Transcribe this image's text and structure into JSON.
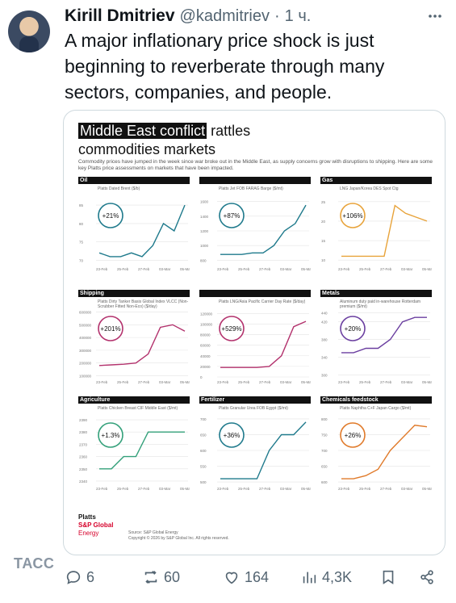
{
  "tweet": {
    "author_name": "Kirill Dmitriev",
    "handle": "@kadmitriev",
    "separator": "·",
    "time": "1 ч.",
    "text": "A major inflationary price shock is just beginning to reverberate through many sectors, companies, and people."
  },
  "infographic": {
    "title_highlight": "Middle East conflict",
    "title_rest_1": "rattles",
    "title_line2": "commodities markets",
    "subtitle": "Commodity prices have jumped in the week since war broke out in the Middle East, as supply concerns grow with disruptions to shipping. Here are some key Platts price assessments on markets that have been impacted.",
    "logo_platts": "Platts",
    "logo_spglobal": "S&P Global",
    "logo_energy": "Energy",
    "source_line1": "Source: S&P Global Energy",
    "source_line2": "Copyright © 2026 by S&P Global Inc. All rights reserved.",
    "x_labels": [
      "23-Feb",
      "25-Feb",
      "27-Feb",
      "03-Mar",
      "05-Mar"
    ]
  },
  "chart_data": [
    {
      "type": "line",
      "title": "Oil",
      "subtitle": "Platts Dated Brent ($/b)",
      "change": "+21%",
      "color": "#1f7a8c",
      "yticks": [
        70,
        75,
        80,
        85
      ],
      "ylim": [
        69,
        87
      ],
      "x": [
        0,
        1,
        2,
        3,
        4,
        5,
        6,
        7,
        8
      ],
      "values": [
        72,
        71,
        71,
        72,
        71,
        74,
        80,
        78,
        85
      ]
    },
    {
      "type": "line",
      "title": "",
      "subtitle": "Platts Jet FOB FARAG Barge ($/mt)",
      "change": "+87%",
      "color": "#1f7a8c",
      "yticks": [
        800,
        1000,
        1200,
        1400,
        1600
      ],
      "ylim": [
        750,
        1650
      ],
      "x": [
        0,
        1,
        2,
        3,
        4,
        5,
        6,
        7,
        8
      ],
      "values": [
        880,
        880,
        880,
        900,
        900,
        1000,
        1200,
        1300,
        1550
      ]
    },
    {
      "type": "line",
      "title": "Gas",
      "subtitle": "LNG Japan/Korea DES Spot Ctg",
      "change": "+106%",
      "color": "#e8a33a",
      "yticks": [
        10,
        15,
        20,
        25
      ],
      "ylim": [
        9,
        26
      ],
      "x": [
        0,
        1,
        2,
        3,
        4,
        5,
        6,
        7,
        8
      ],
      "values": [
        11,
        11,
        11,
        11,
        11,
        24,
        22,
        21,
        20
      ]
    },
    {
      "type": "line",
      "title": "Shipping",
      "subtitle": "Platts Dirty Tanker Basis Global Index VLCC (Non-Scrubber Fitted Non-Eco) ($/day)",
      "change": "+201%",
      "color": "#b3326d",
      "yticks": [
        100000,
        200000,
        300000,
        400000,
        500000,
        600000
      ],
      "ylim": [
        90000,
        610000
      ],
      "x": [
        0,
        1,
        2,
        3,
        4,
        5,
        6,
        7
      ],
      "values": [
        180000,
        185000,
        190000,
        200000,
        270000,
        480000,
        500000,
        450000
      ]
    },
    {
      "type": "line",
      "title": "",
      "subtitle": "Platts LNG/Asia Pacific Carrier Day Rate ($/day)",
      "change": "+529%",
      "color": "#b3326d",
      "yticks": [
        0,
        20000,
        40000,
        60000,
        80000,
        100000,
        120000
      ],
      "ylim": [
        0,
        125000
      ],
      "x": [
        0,
        1,
        2,
        3,
        4,
        5,
        6,
        7
      ],
      "values": [
        18000,
        18000,
        18000,
        18000,
        20000,
        40000,
        95000,
        105000
      ]
    },
    {
      "type": "line",
      "title": "Metals",
      "subtitle": "Aluminum duty paid in-warehouse Rotterdam premium ($/mt)",
      "change": "+20%",
      "color": "#6b3fa0",
      "yticks": [
        300,
        340,
        380,
        420,
        440
      ],
      "ylim": [
        295,
        445
      ],
      "x": [
        0,
        1,
        2,
        3,
        4,
        5,
        6,
        7
      ],
      "values": [
        350,
        350,
        360,
        360,
        380,
        420,
        430,
        430
      ]
    },
    {
      "type": "line",
      "title": "Agriculture",
      "subtitle": "Platts Chicken Breast CIF Middle East ($/mt)",
      "change": "+1.3%",
      "color": "#33a07a",
      "yticks": [
        2340,
        2350,
        2360,
        2370,
        2380,
        2390
      ],
      "ylim": [
        2338,
        2392
      ],
      "x": [
        0,
        1,
        2,
        3,
        4,
        5,
        6,
        7
      ],
      "values": [
        2350,
        2350,
        2360,
        2360,
        2380,
        2380,
        2380,
        2380
      ]
    },
    {
      "type": "line",
      "title": "Fertilizer",
      "subtitle": "Platts Granular Urea FOB Egypt ($/mt)",
      "change": "+36%",
      "color": "#1f7a8c",
      "yticks": [
        500,
        550,
        600,
        650,
        700
      ],
      "ylim": [
        495,
        705
      ],
      "x": [
        0,
        1,
        2,
        3,
        4,
        5,
        6,
        7
      ],
      "values": [
        510,
        510,
        510,
        510,
        600,
        650,
        650,
        690
      ]
    },
    {
      "type": "line",
      "title": "Chemicals feedstock",
      "subtitle": "Platts Naphtha C+F Japan Cargo ($/mt)",
      "change": "+26%",
      "color": "#e07a2a",
      "yticks": [
        600,
        650,
        700,
        750,
        800
      ],
      "ylim": [
        595,
        805
      ],
      "x": [
        0,
        1,
        2,
        3,
        4,
        5,
        6,
        7
      ],
      "values": [
        610,
        610,
        620,
        640,
        700,
        740,
        780,
        775
      ]
    }
  ],
  "watermark": "ТАСС",
  "actions": {
    "replies": "6",
    "reposts": "60",
    "likes": "164",
    "views": "4,3K"
  }
}
